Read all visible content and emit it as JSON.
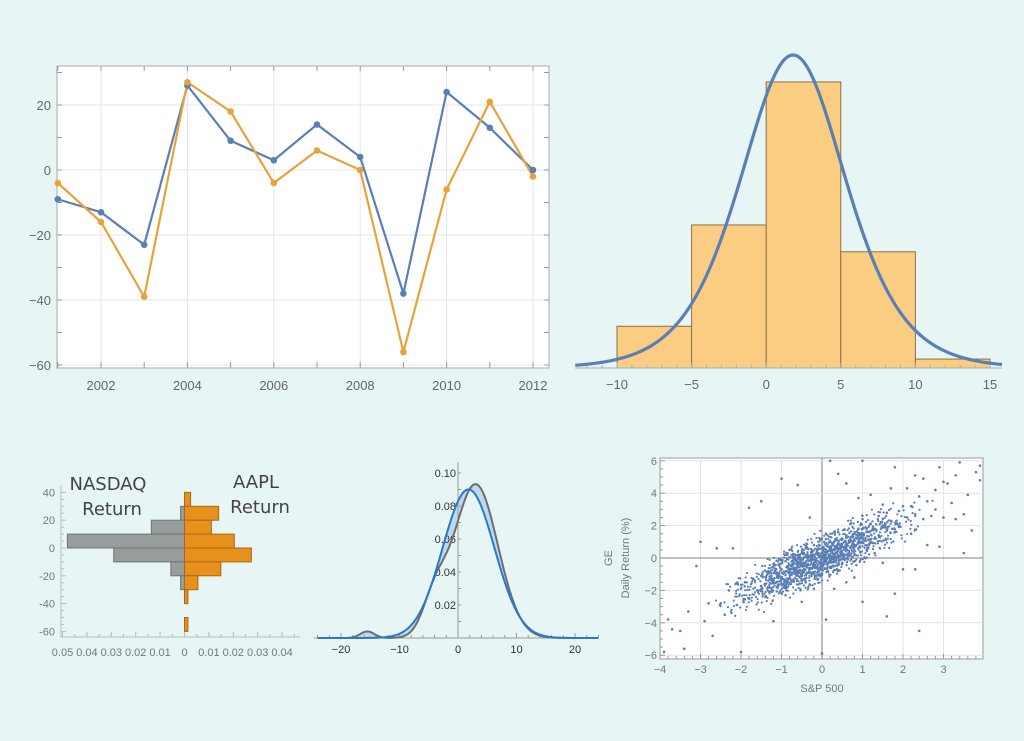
{
  "colors": {
    "background": "#e7f5f5",
    "blue": "#5a7fb5",
    "orange": "#e8a23a",
    "hist_fill": "#fbcd82",
    "hist_stroke": "#8a7044",
    "gray_bar": "#979c9c",
    "orange_bar": "#e8901c",
    "density_blue": "#2a78cc",
    "density_gray": "#6e6e6e",
    "density_fill": "#b9d6ee"
  },
  "chart_data": [
    {
      "type": "line",
      "x": [
        2001,
        2002,
        2003,
        2004,
        2005,
        2006,
        2007,
        2008,
        2009,
        2010,
        2011,
        2012
      ],
      "series": [
        {
          "color": "#5a7fb5",
          "values": [
            -9,
            -13,
            -23,
            26,
            9,
            3,
            14,
            4,
            -38,
            24,
            13,
            0
          ]
        },
        {
          "color": "#e8a23a",
          "values": [
            -4,
            -16,
            -39,
            27,
            18,
            -4,
            6,
            0,
            -56,
            -6,
            21,
            -2
          ]
        }
      ],
      "xticks": [
        "2002",
        "2004",
        "2006",
        "2008",
        "2010",
        "2012"
      ],
      "yticks": [
        "20",
        "0",
        "−20",
        "−40",
        "−60"
      ],
      "xlim": [
        2000.9,
        2012.2
      ],
      "ylim": [
        -61,
        32
      ],
      "grid": true
    },
    {
      "type": "bar",
      "bins": [
        [
          -10,
          -5
        ],
        [
          -5,
          0
        ],
        [
          0,
          5
        ],
        [
          5,
          10
        ],
        [
          10,
          15
        ]
      ],
      "values": [
        0.014,
        0.048,
        0.096,
        0.039,
        0.003
      ],
      "fit_curve": {
        "distribution": "logistic",
        "location": 1.8,
        "scale": 2.38
      },
      "xticks": [
        "−10",
        "−5",
        "0",
        "5",
        "10",
        "15"
      ],
      "xlim": [
        -12.8,
        15.8
      ],
      "ylim": [
        0,
        0.11
      ]
    },
    {
      "type": "bar",
      "orientation": "paired-horizontal",
      "bins": [
        [
          30,
          40
        ],
        [
          20,
          30
        ],
        [
          10,
          20
        ],
        [
          0,
          10
        ],
        [
          -10,
          0
        ],
        [
          -20,
          -10
        ],
        [
          -30,
          -20
        ],
        [
          -40,
          -30
        ],
        [
          -50,
          -40
        ],
        [
          -60,
          -50
        ]
      ],
      "series": [
        {
          "name": "NASDAQ Return",
          "side": "left",
          "values": [
            0,
            0.0016,
            0.0136,
            0.048,
            0.029,
            0.0056,
            0.0016,
            0,
            0,
            0
          ]
        },
        {
          "name": "AAPL Return",
          "side": "right",
          "values": [
            0.0025,
            0.014,
            0.011,
            0.0204,
            0.0274,
            0.0149,
            0.0055,
            0.0014,
            0,
            0.0014
          ]
        }
      ],
      "left_label": [
        "NASDAQ",
        "Return"
      ],
      "right_label": [
        "AAPL",
        "Return"
      ],
      "yticks": [
        "40",
        "20",
        "0",
        "-20",
        "-40",
        "-60"
      ],
      "xticks": [
        "0.05",
        "0.04",
        "0.03",
        "0.02",
        "0.01",
        "0",
        "0.01",
        "0.02",
        "0.03",
        "0.04"
      ]
    },
    {
      "type": "area",
      "series": [
        {
          "color": "#2a78cc",
          "mixture": [
            [
              1.0,
              1.8,
              4.43
            ]
          ]
        },
        {
          "color": "#6e6e6e",
          "mixture": [
            [
              0.012,
              -15.5,
              1.2
            ],
            [
              0.1,
              -4,
              2
            ],
            [
              0.888,
              3,
              3.8
            ]
          ]
        }
      ],
      "xticks": [
        "−20",
        "−10",
        "0",
        "10",
        "20"
      ],
      "yticks": [
        "0.10",
        "0.08",
        "0.06",
        "0.04",
        "0.02"
      ],
      "xlim": [
        -24,
        24
      ],
      "ylim": [
        0,
        0.105
      ]
    },
    {
      "type": "scatter",
      "xlabel": "S&P 500",
      "ylabel": [
        "GE",
        "Daily Return (%)"
      ],
      "xticks": [
        "−4",
        "−3",
        "−2",
        "−1",
        "0",
        "1",
        "2",
        "3"
      ],
      "yticks": [
        "6",
        "4",
        "2",
        "0",
        "−2",
        "−4",
        "−6"
      ],
      "xlim": [
        -4,
        4
      ],
      "ylim": [
        -6.2,
        6.2
      ],
      "grid": true,
      "points": [
        [
          -3.9,
          -5.8
        ],
        [
          -3.8,
          -3.8
        ],
        [
          -3.7,
          -4.4
        ],
        [
          -3.5,
          -4.5
        ],
        [
          -3.4,
          -5.6
        ],
        [
          -3.3,
          -3.3
        ],
        [
          -3.1,
          -0.5
        ],
        [
          -3.0,
          1.0
        ],
        [
          -2.9,
          -3.9
        ],
        [
          -2.8,
          -2.8
        ],
        [
          -2.7,
          -4.8
        ],
        [
          -2.6,
          0.6
        ],
        [
          -2.5,
          -2.8
        ],
        [
          -2.4,
          -3.5
        ],
        [
          -2.3,
          -2.0
        ],
        [
          -2.2,
          0.6
        ],
        [
          -2.1,
          -2.9
        ],
        [
          -2.0,
          -5.8
        ],
        [
          -2.0,
          -1.9
        ],
        [
          -1.9,
          -1.5
        ],
        [
          -1.8,
          -2.5
        ],
        [
          -1.8,
          3.1
        ],
        [
          -1.7,
          -1.3
        ],
        [
          -1.6,
          -2.0
        ],
        [
          -1.5,
          -1.1
        ],
        [
          -1.5,
          3.5
        ],
        [
          -1.4,
          -2.4
        ],
        [
          -1.3,
          -0.9
        ],
        [
          -1.3,
          -1.8
        ],
        [
          -1.2,
          -0.4
        ],
        [
          -1.2,
          -3.9
        ],
        [
          -1.1,
          -1.2
        ],
        [
          -1.0,
          -0.7
        ],
        [
          -1.0,
          4.9
        ],
        [
          -1.0,
          -1.6
        ],
        [
          -0.9,
          -0.2
        ],
        [
          -0.9,
          -2.3
        ],
        [
          -0.8,
          -0.9
        ],
        [
          -0.8,
          0.5
        ],
        [
          -0.7,
          -1.4
        ],
        [
          -0.7,
          -0.3
        ],
        [
          -0.6,
          4.5
        ],
        [
          -0.6,
          -0.8
        ],
        [
          -0.5,
          -1.1
        ],
        [
          -0.5,
          0.3
        ],
        [
          -0.5,
          -2.7
        ],
        [
          -0.4,
          -0.5
        ],
        [
          -0.4,
          -1.5
        ],
        [
          -0.3,
          0.1
        ],
        [
          -0.3,
          -0.9
        ],
        [
          -0.3,
          2.5
        ],
        [
          -0.2,
          -0.3
        ],
        [
          -0.2,
          -1.9
        ],
        [
          -0.2,
          0.8
        ],
        [
          -0.1,
          -0.6
        ],
        [
          -0.1,
          0.2
        ],
        [
          -0.1,
          -1.3
        ],
        [
          0.0,
          0.0
        ],
        [
          0.0,
          -0.4
        ],
        [
          0.0,
          1.2
        ],
        [
          0.0,
          -5.9
        ],
        [
          0.1,
          0.4
        ],
        [
          0.1,
          -0.2
        ],
        [
          0.1,
          1.5
        ],
        [
          0.1,
          -3.8
        ],
        [
          0.2,
          0.7
        ],
        [
          0.2,
          -0.6
        ],
        [
          0.2,
          0.2
        ],
        [
          0.2,
          6.0
        ],
        [
          0.3,
          1.0
        ],
        [
          0.3,
          -0.1
        ],
        [
          0.3,
          0.5
        ],
        [
          0.3,
          -1.9
        ],
        [
          0.4,
          0.9
        ],
        [
          0.4,
          1.6
        ],
        [
          0.4,
          -0.8
        ],
        [
          0.4,
          5.2
        ],
        [
          0.5,
          0.3
        ],
        [
          0.5,
          1.2
        ],
        [
          0.5,
          -0.3
        ],
        [
          0.6,
          1.4
        ],
        [
          0.6,
          0.6
        ],
        [
          0.6,
          -1.5
        ],
        [
          0.6,
          4.6
        ],
        [
          0.7,
          1.0
        ],
        [
          0.7,
          2.1
        ],
        [
          0.7,
          0.2
        ],
        [
          0.8,
          1.5
        ],
        [
          0.8,
          0.7
        ],
        [
          0.8,
          -1.2
        ],
        [
          0.9,
          1.8
        ],
        [
          0.9,
          0.9
        ],
        [
          0.9,
          3.7
        ],
        [
          1.0,
          1.2
        ],
        [
          1.0,
          2.4
        ],
        [
          1.0,
          -2.7
        ],
        [
          1.0,
          6.0
        ],
        [
          1.1,
          1.6
        ],
        [
          1.1,
          0.5
        ],
        [
          1.2,
          2.1
        ],
        [
          1.2,
          1.0
        ],
        [
          1.2,
          3.9
        ],
        [
          1.3,
          1.8
        ],
        [
          1.3,
          0.3
        ],
        [
          1.4,
          2.6
        ],
        [
          1.4,
          1.4
        ],
        [
          1.5,
          2.0
        ],
        [
          1.5,
          -0.3
        ],
        [
          1.5,
          3.3
        ],
        [
          1.6,
          1.7
        ],
        [
          1.6,
          2.8
        ],
        [
          1.6,
          -3.6
        ],
        [
          1.7,
          2.3
        ],
        [
          1.7,
          4.3
        ],
        [
          1.8,
          1.6
        ],
        [
          1.8,
          5.6
        ],
        [
          1.8,
          -2.2
        ],
        [
          1.9,
          2.9
        ],
        [
          1.9,
          2.0
        ],
        [
          2.0,
          3.2
        ],
        [
          2.0,
          -0.7
        ],
        [
          2.1,
          2.5
        ],
        [
          2.1,
          4.3
        ],
        [
          2.2,
          1.5
        ],
        [
          2.2,
          3.2
        ],
        [
          2.3,
          5.1
        ],
        [
          2.3,
          2.7
        ],
        [
          2.3,
          -0.7
        ],
        [
          2.4,
          3.8
        ],
        [
          2.4,
          -4.5
        ],
        [
          2.5,
          2.4
        ],
        [
          2.5,
          4.9
        ],
        [
          2.6,
          3.5
        ],
        [
          2.6,
          0.8
        ],
        [
          2.7,
          2.6
        ],
        [
          2.8,
          4.2
        ],
        [
          2.8,
          3.0
        ],
        [
          2.9,
          5.6
        ],
        [
          2.9,
          0.7
        ],
        [
          3.0,
          4.7
        ],
        [
          3.0,
          2.5
        ],
        [
          3.1,
          4.6
        ],
        [
          3.2,
          3.4
        ],
        [
          3.3,
          5.1
        ],
        [
          3.3,
          2.4
        ],
        [
          3.4,
          5.9
        ],
        [
          3.5,
          0.3
        ],
        [
          3.5,
          2.7
        ],
        [
          3.6,
          3.9
        ],
        [
          3.7,
          1.7
        ],
        [
          3.8,
          5.3
        ],
        [
          3.9,
          4.8
        ],
        [
          3.9,
          5.7
        ]
      ]
    }
  ]
}
